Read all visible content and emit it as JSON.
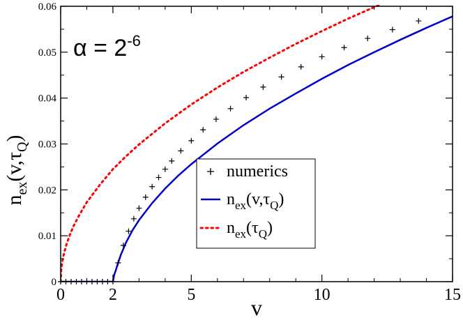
{
  "chart_data": {
    "type": "line",
    "xlabel": "v",
    "ylabel": "n",
    "ylabel_sub": "ex",
    "ylabel_rest": "(v,τ",
    "ylabel_sub2": "Q",
    "ylabel_close": ")",
    "annotation": {
      "base": "α = 2",
      "exponent": "-6"
    },
    "xlim": [
      0,
      15
    ],
    "ylim": [
      0,
      0.06
    ],
    "x_ticks": [
      0,
      2,
      5,
      10,
      15
    ],
    "x_minor_ticks": [
      1,
      3,
      4,
      6,
      7,
      8,
      9,
      11,
      12,
      13,
      14
    ],
    "y_ticks": [
      0,
      0.01,
      0.02,
      0.03,
      0.04,
      0.05,
      0.06
    ],
    "y_tick_labels": [
      "0",
      "0.01",
      "0.02",
      "0.03",
      "0.04",
      "0.05",
      "0.06"
    ],
    "x_tick_labels": [
      "0",
      "2",
      "5",
      "10",
      "15"
    ],
    "grid": false,
    "legend_position": "center",
    "series": [
      {
        "name": "numerics",
        "name_parts": [
          "numerics"
        ],
        "style": "plus",
        "color": "#000000",
        "x": [
          0.0,
          0.2,
          0.4,
          0.6,
          0.8,
          1.0,
          1.2,
          1.4,
          1.6,
          1.8,
          2.0,
          2.2,
          2.4,
          2.6,
          2.8,
          3.0,
          3.25,
          3.5,
          3.75,
          4.0,
          4.25,
          4.6,
          5.0,
          5.45,
          5.95,
          6.5,
          7.1,
          7.75,
          8.45,
          9.2,
          10.0,
          10.85,
          11.75,
          12.7,
          13.7
        ],
        "y": [
          0,
          0,
          0,
          0,
          0,
          0,
          0,
          0,
          0,
          0,
          0,
          0.0041,
          0.0079,
          0.011,
          0.0137,
          0.016,
          0.0184,
          0.0207,
          0.0227,
          0.0245,
          0.0263,
          0.0285,
          0.0307,
          0.0331,
          0.0354,
          0.0377,
          0.0401,
          0.0424,
          0.0446,
          0.0468,
          0.049,
          0.051,
          0.053,
          0.0549,
          0.0568
        ]
      },
      {
        "name": "n_ex(v,τ_Q)",
        "name_parts": [
          "n",
          "ex",
          "(v,τ",
          "Q",
          ")"
        ],
        "style": "solid",
        "color": "#0000cc",
        "x": [
          0,
          0.5,
          1.0,
          1.5,
          2.0,
          2.05,
          2.1,
          2.2,
          2.3,
          2.5,
          2.75,
          3.0,
          3.5,
          4.0,
          4.5,
          5.0,
          6.0,
          7.0,
          8.0,
          9.0,
          10.0,
          11.0,
          12.0,
          13.0,
          14.0,
          15.0
        ],
        "y": [
          0,
          0,
          0,
          0,
          0,
          0.0015,
          0.0023,
          0.0041,
          0.0058,
          0.0085,
          0.0112,
          0.0134,
          0.0171,
          0.0203,
          0.0231,
          0.0256,
          0.0301,
          0.0341,
          0.0377,
          0.041,
          0.0442,
          0.0472,
          0.05,
          0.0527,
          0.0553,
          0.0578
        ]
      },
      {
        "name": "n_ex(τ_Q)",
        "name_parts": [
          "n",
          "ex",
          "(τ",
          "Q",
          ")"
        ],
        "style": "dotted",
        "color": "#ff0000",
        "x": [
          0,
          0.02,
          0.05,
          0.1,
          0.2,
          0.35,
          0.5,
          0.75,
          1.0,
          1.5,
          2.0,
          2.5,
          3.0,
          4.0,
          5.0,
          6.0,
          7.0,
          8.0,
          9.0,
          10.0,
          11.0,
          12.0,
          13.0,
          14.0,
          15.0
        ],
        "y": [
          0,
          0.0025,
          0.0039,
          0.0055,
          0.0077,
          0.0102,
          0.0122,
          0.0149,
          0.0173,
          0.0211,
          0.0245,
          0.0273,
          0.0299,
          0.0345,
          0.0386,
          0.0423,
          0.0457,
          0.0488,
          0.0518,
          0.0546,
          0.0573,
          0.0598,
          0.0623,
          0.0646,
          0.0669
        ]
      }
    ]
  }
}
